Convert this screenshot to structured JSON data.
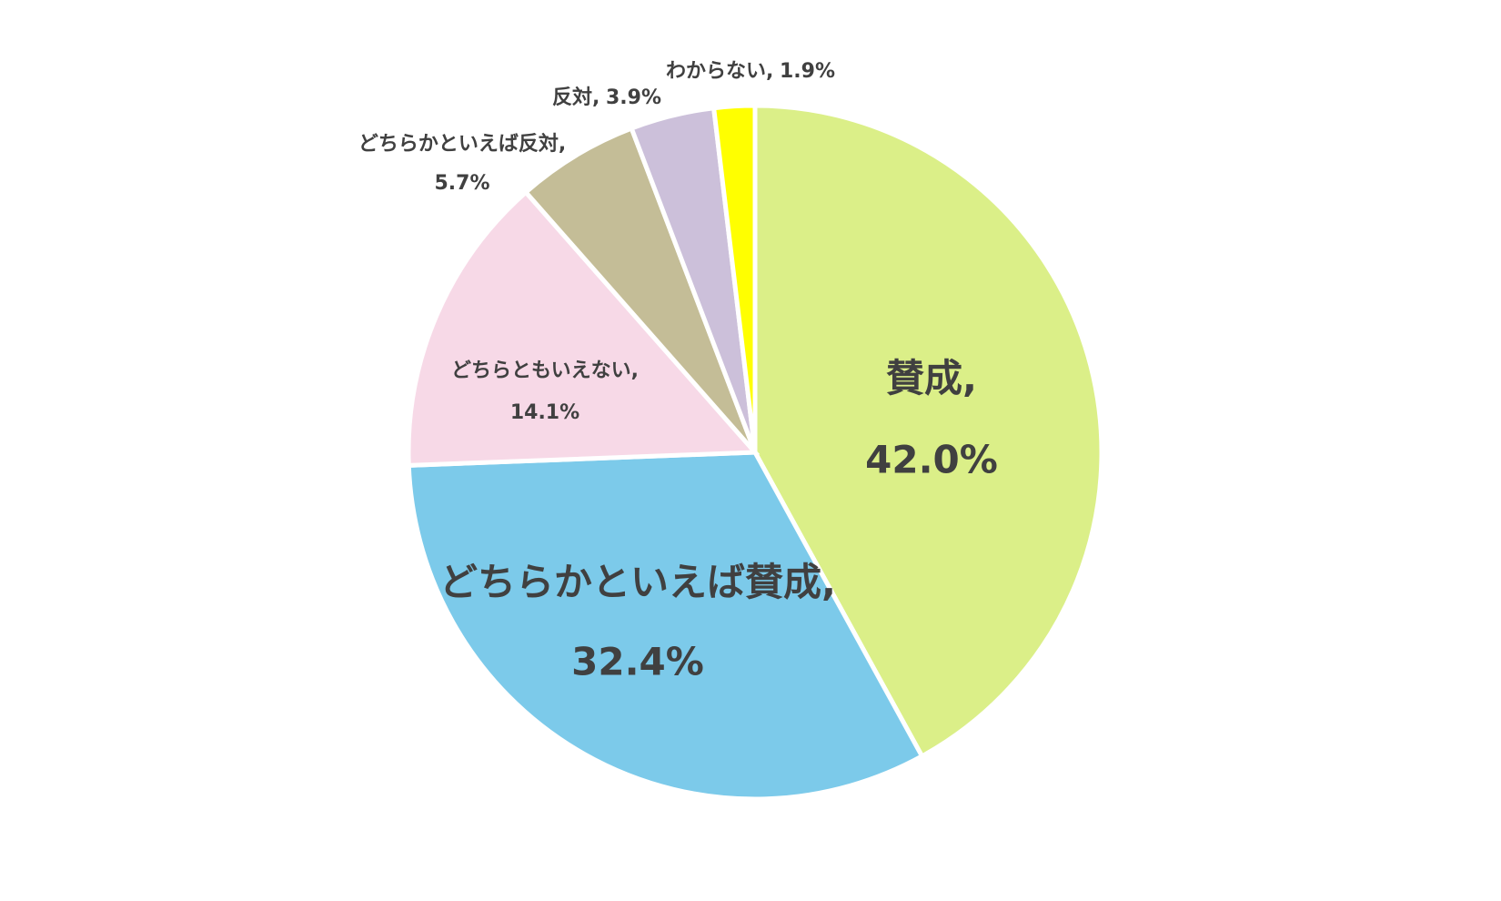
{
  "chart_data": {
    "type": "pie",
    "categories": [
      "賛成",
      "どちらかといえば賛成",
      "どちらともいえない",
      "どちらかといえば反対",
      "反対",
      "わからない"
    ],
    "values": [
      42.0,
      32.4,
      14.1,
      5.7,
      3.9,
      1.9
    ],
    "value_labels": [
      "42.0%",
      "32.4%",
      "14.1%",
      "5.7%",
      "3.9%",
      "1.9%"
    ],
    "label_separator": ",",
    "colors": [
      "#dbef88",
      "#7ccaea",
      "#f7d9e7",
      "#c4bd97",
      "#ccc0da",
      "#ffff00"
    ]
  }
}
